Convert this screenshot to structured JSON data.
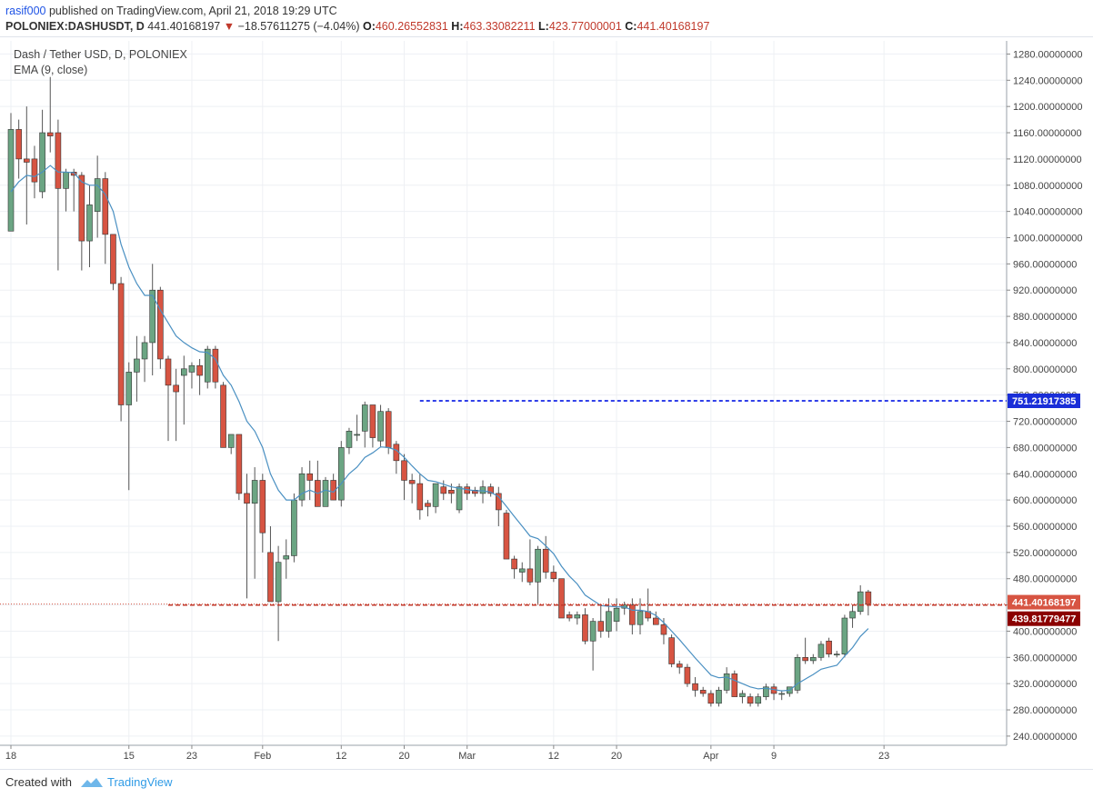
{
  "header": {
    "user": "rasif000",
    "published_text": "published on TradingView.com, April 21, 2018 19:29 UTC",
    "symbol": "POLONIEX:DASHUSDT, D",
    "last_price": "441.40168197",
    "change": "−18.57611275 (−4.04%)",
    "o_label": "O:",
    "o_value": "460.26552831",
    "h_label": "H:",
    "h_value": "463.33082211",
    "l_label": "L:",
    "l_value": "423.77000001",
    "c_label": "C:",
    "c_value": "441.40168197"
  },
  "legend": {
    "title": "Dash / Tether USD, D, POLONIEX",
    "indicator": "EMA (9, close)"
  },
  "footer": {
    "created_with": "Created with",
    "brand": "TradingView"
  },
  "colors": {
    "up": "#6ba583",
    "down": "#d75442",
    "wick": "#555555",
    "ema": "#4a90c2",
    "resistance": "#2f3fe8",
    "support": "#c0392b",
    "price_badge": "#d75442",
    "support_badge": "#8b0000",
    "resistance_badge": "#1a2ed8"
  },
  "chart_data": {
    "type": "candlestick",
    "ylim": [
      226,
      1300
    ],
    "y_ticks": [
      240,
      280,
      320,
      360,
      400,
      440,
      480,
      520,
      560,
      600,
      640,
      680,
      720,
      760,
      800,
      840,
      880,
      920,
      960,
      1000,
      1040,
      1080,
      1120,
      1160,
      1200,
      1240,
      1280
    ],
    "y_tick_format": "8 decimals",
    "x_ticks": [
      {
        "label": "18",
        "index": 0
      },
      {
        "label": "15",
        "index": 15
      },
      {
        "label": "23",
        "index": 23
      },
      {
        "label": "Feb",
        "index": 32
      },
      {
        "label": "12",
        "index": 42
      },
      {
        "label": "20",
        "index": 50
      },
      {
        "label": "Mar",
        "index": 58
      },
      {
        "label": "12",
        "index": 69
      },
      {
        "label": "20",
        "index": 77
      },
      {
        "label": "Apr",
        "index": 89
      },
      {
        "label": "9",
        "index": 97
      },
      {
        "label": "23",
        "index": 111
      }
    ],
    "candles": [
      {
        "o": 1010,
        "h": 1190,
        "l": 1010,
        "c": 1165
      },
      {
        "o": 1165,
        "h": 1180,
        "l": 1090,
        "c": 1120
      },
      {
        "o": 1120,
        "h": 1200,
        "l": 1020,
        "c": 1115
      },
      {
        "o": 1120,
        "h": 1140,
        "l": 1060,
        "c": 1085
      },
      {
        "o": 1070,
        "h": 1195,
        "l": 1060,
        "c": 1160
      },
      {
        "o": 1160,
        "h": 1245,
        "l": 1130,
        "c": 1155
      },
      {
        "o": 1160,
        "h": 1180,
        "l": 950,
        "c": 1075
      },
      {
        "o": 1075,
        "h": 1105,
        "l": 1040,
        "c": 1100
      },
      {
        "o": 1100,
        "h": 1105,
        "l": 1040,
        "c": 1095
      },
      {
        "o": 1095,
        "h": 1100,
        "l": 950,
        "c": 995
      },
      {
        "o": 995,
        "h": 1080,
        "l": 955,
        "c": 1050
      },
      {
        "o": 1040,
        "h": 1125,
        "l": 1000,
        "c": 1090
      },
      {
        "o": 1090,
        "h": 1100,
        "l": 960,
        "c": 1005
      },
      {
        "o": 1005,
        "h": 1000,
        "l": 920,
        "c": 930
      },
      {
        "o": 930,
        "h": 940,
        "l": 720,
        "c": 745
      },
      {
        "o": 745,
        "h": 810,
        "l": 615,
        "c": 795
      },
      {
        "o": 795,
        "h": 850,
        "l": 750,
        "c": 815
      },
      {
        "o": 815,
        "h": 850,
        "l": 780,
        "c": 840
      },
      {
        "o": 840,
        "h": 960,
        "l": 790,
        "c": 920
      },
      {
        "o": 920,
        "h": 925,
        "l": 800,
        "c": 815
      },
      {
        "o": 815,
        "h": 820,
        "l": 690,
        "c": 775
      },
      {
        "o": 775,
        "h": 800,
        "l": 690,
        "c": 765
      },
      {
        "o": 790,
        "h": 820,
        "l": 715,
        "c": 800
      },
      {
        "o": 795,
        "h": 810,
        "l": 770,
        "c": 805
      },
      {
        "o": 805,
        "h": 815,
        "l": 760,
        "c": 790
      },
      {
        "o": 780,
        "h": 835,
        "l": 770,
        "c": 830
      },
      {
        "o": 830,
        "h": 835,
        "l": 770,
        "c": 780
      },
      {
        "o": 775,
        "h": 780,
        "l": 680,
        "c": 680
      },
      {
        "o": 680,
        "h": 700,
        "l": 670,
        "c": 700
      },
      {
        "o": 700,
        "h": 700,
        "l": 600,
        "c": 610
      },
      {
        "o": 610,
        "h": 640,
        "l": 450,
        "c": 595
      },
      {
        "o": 595,
        "h": 650,
        "l": 480,
        "c": 630
      },
      {
        "o": 630,
        "h": 640,
        "l": 520,
        "c": 550
      },
      {
        "o": 520,
        "h": 560,
        "l": 450,
        "c": 445
      },
      {
        "o": 445,
        "h": 530,
        "l": 385,
        "c": 505
      },
      {
        "o": 510,
        "h": 540,
        "l": 480,
        "c": 515
      },
      {
        "o": 515,
        "h": 610,
        "l": 505,
        "c": 600
      },
      {
        "o": 600,
        "h": 650,
        "l": 590,
        "c": 640
      },
      {
        "o": 640,
        "h": 660,
        "l": 600,
        "c": 630
      },
      {
        "o": 630,
        "h": 660,
        "l": 590,
        "c": 590
      },
      {
        "o": 590,
        "h": 635,
        "l": 590,
        "c": 630
      },
      {
        "o": 630,
        "h": 640,
        "l": 600,
        "c": 600
      },
      {
        "o": 600,
        "h": 690,
        "l": 590,
        "c": 680
      },
      {
        "o": 680,
        "h": 710,
        "l": 670,
        "c": 705
      },
      {
        "o": 700,
        "h": 730,
        "l": 690,
        "c": 700
      },
      {
        "o": 705,
        "h": 750,
        "l": 680,
        "c": 745
      },
      {
        "o": 745,
        "h": 745,
        "l": 680,
        "c": 695
      },
      {
        "o": 690,
        "h": 745,
        "l": 680,
        "c": 735
      },
      {
        "o": 735,
        "h": 740,
        "l": 670,
        "c": 680
      },
      {
        "o": 685,
        "h": 690,
        "l": 640,
        "c": 660
      },
      {
        "o": 660,
        "h": 670,
        "l": 600,
        "c": 630
      },
      {
        "o": 630,
        "h": 640,
        "l": 595,
        "c": 625
      },
      {
        "o": 625,
        "h": 640,
        "l": 570,
        "c": 585
      },
      {
        "o": 595,
        "h": 600,
        "l": 575,
        "c": 590
      },
      {
        "o": 590,
        "h": 625,
        "l": 580,
        "c": 625
      },
      {
        "o": 620,
        "h": 630,
        "l": 600,
        "c": 610
      },
      {
        "o": 615,
        "h": 625,
        "l": 595,
        "c": 610
      },
      {
        "o": 585,
        "h": 625,
        "l": 580,
        "c": 620
      },
      {
        "o": 620,
        "h": 625,
        "l": 600,
        "c": 610
      },
      {
        "o": 615,
        "h": 620,
        "l": 605,
        "c": 610
      },
      {
        "o": 610,
        "h": 630,
        "l": 595,
        "c": 620
      },
      {
        "o": 620,
        "h": 625,
        "l": 605,
        "c": 610
      },
      {
        "o": 610,
        "h": 620,
        "l": 560,
        "c": 585
      },
      {
        "o": 580,
        "h": 585,
        "l": 510,
        "c": 510
      },
      {
        "o": 510,
        "h": 515,
        "l": 480,
        "c": 495
      },
      {
        "o": 490,
        "h": 505,
        "l": 475,
        "c": 495
      },
      {
        "o": 495,
        "h": 540,
        "l": 470,
        "c": 475
      },
      {
        "o": 475,
        "h": 530,
        "l": 440,
        "c": 525
      },
      {
        "o": 525,
        "h": 545,
        "l": 480,
        "c": 490
      },
      {
        "o": 490,
        "h": 500,
        "l": 475,
        "c": 480
      },
      {
        "o": 480,
        "h": 480,
        "l": 420,
        "c": 420
      },
      {
        "o": 425,
        "h": 430,
        "l": 415,
        "c": 420
      },
      {
        "o": 420,
        "h": 430,
        "l": 410,
        "c": 425
      },
      {
        "o": 425,
        "h": 435,
        "l": 380,
        "c": 385
      },
      {
        "o": 385,
        "h": 420,
        "l": 340,
        "c": 415
      },
      {
        "o": 415,
        "h": 440,
        "l": 390,
        "c": 400
      },
      {
        "o": 400,
        "h": 450,
        "l": 390,
        "c": 430
      },
      {
        "o": 415,
        "h": 450,
        "l": 400,
        "c": 435
      },
      {
        "o": 435,
        "h": 445,
        "l": 425,
        "c": 440
      },
      {
        "o": 440,
        "h": 450,
        "l": 395,
        "c": 410
      },
      {
        "o": 410,
        "h": 450,
        "l": 395,
        "c": 430
      },
      {
        "o": 430,
        "h": 465,
        "l": 415,
        "c": 420
      },
      {
        "o": 420,
        "h": 430,
        "l": 410,
        "c": 410
      },
      {
        "o": 410,
        "h": 420,
        "l": 380,
        "c": 395
      },
      {
        "o": 390,
        "h": 395,
        "l": 345,
        "c": 350
      },
      {
        "o": 350,
        "h": 355,
        "l": 335,
        "c": 345
      },
      {
        "o": 345,
        "h": 350,
        "l": 315,
        "c": 320
      },
      {
        "o": 320,
        "h": 330,
        "l": 300,
        "c": 310
      },
      {
        "o": 310,
        "h": 315,
        "l": 300,
        "c": 305
      },
      {
        "o": 305,
        "h": 310,
        "l": 285,
        "c": 290
      },
      {
        "o": 290,
        "h": 315,
        "l": 285,
        "c": 310
      },
      {
        "o": 310,
        "h": 345,
        "l": 305,
        "c": 335
      },
      {
        "o": 335,
        "h": 340,
        "l": 300,
        "c": 300
      },
      {
        "o": 300,
        "h": 310,
        "l": 290,
        "c": 305
      },
      {
        "o": 300,
        "h": 305,
        "l": 285,
        "c": 290
      },
      {
        "o": 290,
        "h": 305,
        "l": 285,
        "c": 300
      },
      {
        "o": 300,
        "h": 320,
        "l": 295,
        "c": 315
      },
      {
        "o": 315,
        "h": 320,
        "l": 295,
        "c": 305
      },
      {
        "o": 305,
        "h": 310,
        "l": 295,
        "c": 305
      },
      {
        "o": 305,
        "h": 315,
        "l": 300,
        "c": 315
      },
      {
        "o": 310,
        "h": 365,
        "l": 305,
        "c": 360
      },
      {
        "o": 360,
        "h": 390,
        "l": 350,
        "c": 355
      },
      {
        "o": 355,
        "h": 365,
        "l": 350,
        "c": 360
      },
      {
        "o": 360,
        "h": 385,
        "l": 355,
        "c": 380
      },
      {
        "o": 385,
        "h": 390,
        "l": 360,
        "c": 365
      },
      {
        "o": 365,
        "h": 370,
        "l": 360,
        "c": 365
      },
      {
        "o": 365,
        "h": 425,
        "l": 360,
        "c": 420
      },
      {
        "o": 420,
        "h": 440,
        "l": 405,
        "c": 430
      },
      {
        "o": 430,
        "h": 470,
        "l": 425,
        "c": 460
      },
      {
        "o": 460,
        "h": 463,
        "l": 424,
        "c": 441
      }
    ],
    "ema": [
      1070,
      1085,
      1095,
      1093,
      1100,
      1110,
      1100,
      1100,
      1099,
      1085,
      1080,
      1080,
      1066,
      1040,
      990,
      955,
      930,
      912,
      912,
      890,
      870,
      850,
      840,
      832,
      826,
      825,
      815,
      790,
      775,
      750,
      720,
      705,
      680,
      640,
      615,
      600,
      600,
      610,
      615,
      610,
      615,
      612,
      625,
      640,
      650,
      665,
      672,
      681,
      680,
      676,
      665,
      652,
      640,
      630,
      628,
      624,
      620,
      618,
      616,
      614,
      614,
      612,
      605,
      590,
      575,
      560,
      545,
      541,
      530,
      518,
      499,
      484,
      472,
      455,
      447,
      439,
      438,
      437,
      437,
      432,
      432,
      430,
      424,
      413,
      400,
      387,
      373,
      359,
      346,
      333,
      329,
      330,
      325,
      320,
      315,
      312,
      313,
      311,
      309,
      310,
      320,
      327,
      334,
      342,
      345,
      348,
      362,
      375,
      392,
      404
    ],
    "current_price_line": 441.40168197,
    "support_level": 439.81779477,
    "resistance_level": 751.21917385,
    "support_label": "439.81779477",
    "price_label": "441.40168197",
    "resistance_label": "751.21917385",
    "support_start_index": 20,
    "resistance_start_index": 52
  }
}
